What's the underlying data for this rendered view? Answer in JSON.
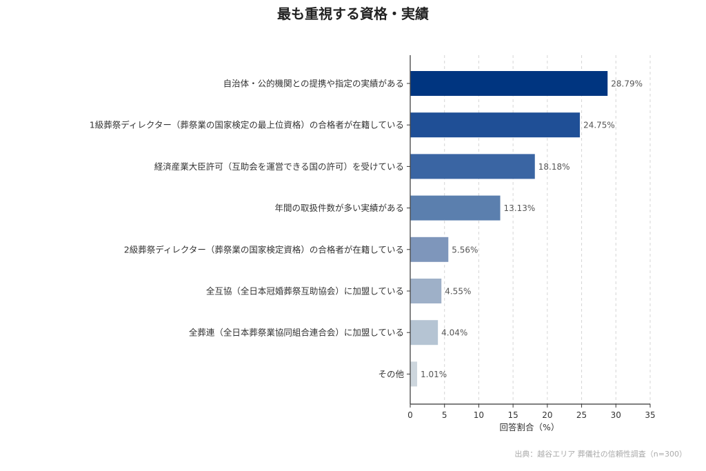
{
  "chart_data": {
    "type": "bar",
    "orientation": "horizontal",
    "title": "最も重視する資格・実績",
    "xlabel": "回答割合（%）",
    "ylabel": "",
    "xlim": [
      0,
      35
    ],
    "xticks": [
      0,
      5,
      10,
      15,
      20,
      25,
      30,
      35
    ],
    "grid": "vertical-dashed",
    "categories": [
      "自治体・公的機関との提携や指定の実績がある",
      "1級葬祭ディレクター（葬祭業の国家検定の最上位資格）の合格者が在籍している",
      "経済産業大臣許可（互助会を運営できる国の許可）を受けている",
      "年間の取扱件数が多い実績がある",
      "2級葬祭ディレクター（葬祭業の国家検定資格）の合格者が在籍している",
      "全互協（全日本冠婚葬祭互助協会）に加盟している",
      "全葬連（全日本葬祭業協同組合連合会）に加盟している",
      "その他"
    ],
    "values": [
      28.79,
      24.75,
      18.18,
      13.13,
      5.56,
      4.55,
      4.04,
      1.01
    ],
    "value_labels": [
      "28.79%",
      "24.75%",
      "18.18%",
      "13.13%",
      "5.56%",
      "4.55%",
      "4.04%",
      "1.01%"
    ],
    "colors": [
      "#003580",
      "#1f4f96",
      "#3a65a3",
      "#5b7fae",
      "#7e96bb",
      "#9eb0c8",
      "#b5c4d3",
      "#cdd6dd"
    ],
    "source": "出典：越谷エリア 葬儀社の信頼性調査（n=300）"
  }
}
